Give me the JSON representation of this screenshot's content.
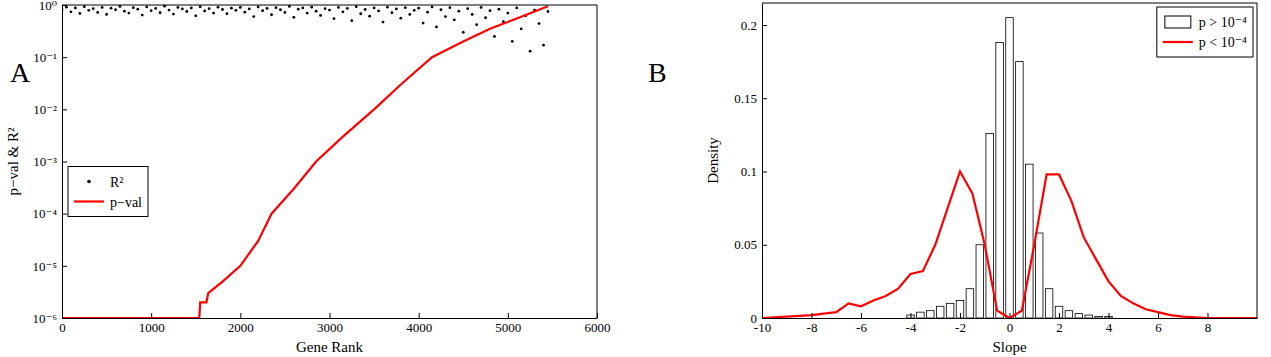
{
  "chart_data": [
    {
      "type": "scatter",
      "panel_label": "A",
      "x_label": "Gene Rank",
      "y_label": "p−val & R²",
      "log": "y",
      "grid": false,
      "legend": "left",
      "xlim": [
        0,
        6000
      ],
      "xticks": [
        0,
        1000,
        2000,
        3000,
        4000,
        5000,
        6000
      ],
      "ylim": [
        1e-06,
        1
      ],
      "yticks": [
        {
          "value": 1e-06,
          "label": "10⁻⁶"
        },
        {
          "value": 1e-05,
          "label": "10⁻⁵"
        },
        {
          "value": 0.0001,
          "label": "10⁻⁴"
        },
        {
          "value": 0.001,
          "label": "10⁻³"
        },
        {
          "value": 0.01,
          "label": "10⁻²"
        },
        {
          "value": 0.1,
          "label": "10⁻¹"
        },
        {
          "value": 1,
          "label": "10⁰"
        }
      ],
      "series": [
        {
          "name": "R²",
          "type": "scatter",
          "color": "#000000",
          "marker": "point",
          "x": [
            0,
            50,
            100,
            150,
            200,
            250,
            300,
            350,
            400,
            450,
            500,
            550,
            600,
            650,
            700,
            750,
            800,
            850,
            900,
            950,
            1000,
            1050,
            1100,
            1150,
            1200,
            1250,
            1300,
            1350,
            1400,
            1450,
            1500,
            1550,
            1600,
            1650,
            1700,
            1750,
            1800,
            1850,
            1900,
            1950,
            2000,
            2050,
            2100,
            2150,
            2200,
            2250,
            2300,
            2350,
            2400,
            2450,
            2500,
            2550,
            2600,
            2650,
            2700,
            2750,
            2800,
            2850,
            2900,
            2950,
            3000,
            3050,
            3100,
            3150,
            3200,
            3250,
            3300,
            3350,
            3400,
            3450,
            3500,
            3550,
            3600,
            3650,
            3700,
            3750,
            3800,
            3850,
            3900,
            3950,
            4000,
            4050,
            4100,
            4150,
            4200,
            4250,
            4300,
            4350,
            4400,
            4450,
            4500,
            4550,
            4600,
            4650,
            4700,
            4750,
            4800,
            4850,
            4900,
            4950,
            5000,
            5050,
            5100,
            5150,
            5200,
            5250,
            5300,
            5350,
            5400,
            5450
          ],
          "values": [
            0.82,
            0.91,
            0.74,
            0.88,
            0.69,
            0.93,
            0.79,
            0.85,
            0.72,
            0.9,
            0.66,
            0.87,
            0.81,
            0.94,
            0.76,
            0.7,
            0.89,
            0.83,
            0.64,
            0.92,
            0.78,
            0.86,
            0.71,
            0.95,
            0.8,
            0.67,
            0.9,
            0.84,
            0.75,
            0.88,
            0.62,
            0.93,
            0.77,
            0.85,
            0.7,
            0.91,
            0.82,
            0.68,
            0.87,
            0.79,
            0.9,
            0.73,
            0.84,
            0.6,
            0.92,
            0.78,
            0.86,
            0.65,
            0.89,
            0.81,
            0.72,
            0.94,
            0.58,
            0.83,
            0.88,
            0.7,
            0.91,
            0.76,
            0.63,
            0.85,
            0.8,
            0.55,
            0.9,
            0.74,
            0.86,
            0.5,
            0.93,
            0.68,
            0.82,
            0.61,
            0.88,
            0.77,
            0.47,
            0.91,
            0.71,
            0.84,
            0.56,
            0.89,
            0.66,
            0.79,
            0.87,
            0.45,
            0.73,
            0.92,
            0.38,
            0.81,
            0.6,
            0.89,
            0.52,
            0.76,
            0.3,
            0.85,
            0.66,
            0.42,
            0.9,
            0.57,
            0.78,
            0.25,
            0.83,
            0.48,
            0.7,
            0.2,
            0.88,
            0.35,
            0.62,
            0.13,
            0.8,
            0.44,
            0.17,
            0.75
          ]
        },
        {
          "name": "p−val",
          "type": "line",
          "color": "#ff0000",
          "line_style": "solid",
          "x": [
            0,
            1540,
            1550,
            1620,
            1640,
            1800,
            2000,
            2200,
            2350,
            2600,
            2850,
            3150,
            3500,
            3800,
            4150,
            4500,
            4800,
            5100,
            5450
          ],
          "values": [
            1e-06,
            1e-06,
            2e-06,
            2e-06,
            3e-06,
            5e-06,
            1e-05,
            3e-05,
            0.0001,
            0.0003,
            0.001,
            0.003,
            0.01,
            0.03,
            0.1,
            0.2,
            0.35,
            0.55,
            0.95
          ]
        }
      ]
    },
    {
      "type": "histogram",
      "panel_label": "B",
      "x_label": "Slope",
      "y_label": "Density",
      "grid": false,
      "legend": "top-right",
      "xlim": [
        -10,
        10
      ],
      "xticks": [
        -10,
        -8,
        -6,
        -4,
        -2,
        0,
        2,
        4,
        6,
        8
      ],
      "ylim": [
        0,
        0.215
      ],
      "yticks": [
        0,
        0.05,
        0.1,
        0.15,
        0.2
      ],
      "series": [
        {
          "name": "p > 10⁻⁴",
          "type": "bar",
          "color": "#ffffff",
          "bins": [
            -4.2,
            -3.8,
            -3.4,
            -3,
            -2.6,
            -2.2,
            -1.8,
            -1.4,
            -1,
            -0.6,
            -0.2,
            0.2,
            0.6,
            1,
            1.4,
            1.8,
            2.2,
            2.6,
            3,
            3.4,
            3.8,
            4.2
          ],
          "values": [
            0.002,
            0.004,
            0.005,
            0.008,
            0.01,
            0.012,
            0.02,
            0.05,
            0.126,
            0.188,
            0.205,
            0.175,
            0.105,
            0.058,
            0.02,
            0.008,
            0.005,
            0.003,
            0.002,
            0.001,
            0.001
          ]
        },
        {
          "name": "p < 10⁻⁴",
          "type": "line",
          "color": "#ff0000",
          "line_style": "solid",
          "x": [
            -10,
            -9,
            -8,
            -7,
            -6.5,
            -6,
            -5.5,
            -5,
            -4.5,
            -4,
            -3.5,
            -3,
            -2.5,
            -2,
            -1.5,
            -1,
            -0.5,
            0,
            0.5,
            1,
            1.5,
            2,
            2.5,
            3,
            3.5,
            4,
            4.5,
            5,
            5.5,
            6,
            6.5,
            7,
            8,
            9,
            10
          ],
          "values": [
            0,
            0.001,
            0.002,
            0.004,
            0.01,
            0.008,
            0.012,
            0.015,
            0.02,
            0.03,
            0.032,
            0.05,
            0.075,
            0.1,
            0.085,
            0.05,
            0.005,
            0,
            0.005,
            0.05,
            0.098,
            0.098,
            0.08,
            0.055,
            0.04,
            0.025,
            0.015,
            0.01,
            0.006,
            0.004,
            0.002,
            0.001,
            0,
            0,
            0
          ]
        }
      ]
    }
  ]
}
